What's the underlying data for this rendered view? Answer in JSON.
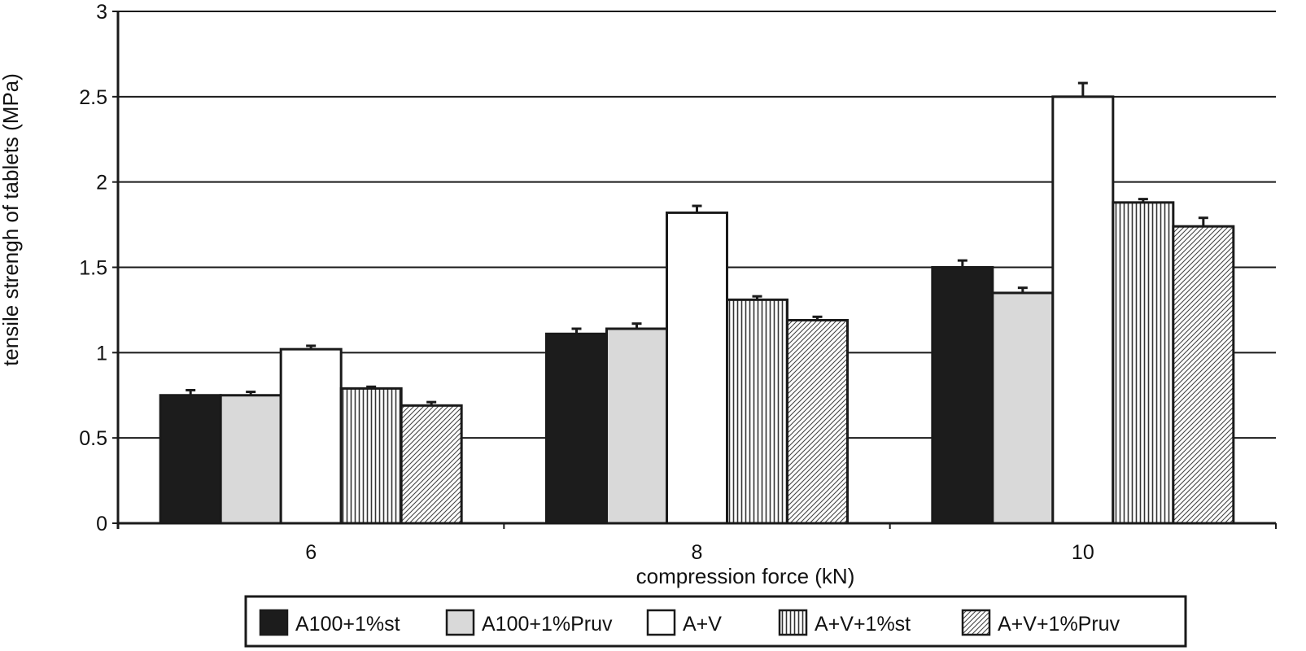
{
  "chart_data": {
    "type": "bar",
    "title": "",
    "xlabel": "compression force (kN)",
    "ylabel": "tensile strengh of tablets (MPa)",
    "categories": [
      "6",
      "8",
      "10"
    ],
    "ylim": [
      0,
      3
    ],
    "yticks": [
      "0",
      "0.5",
      "1",
      "1.5",
      "2",
      "2.5",
      "3"
    ],
    "grid": "horizontal",
    "legend_position": "bottom",
    "series": [
      {
        "name": "A100+1%st",
        "fill": "solid-black",
        "values": [
          0.75,
          1.11,
          1.5
        ],
        "errors": [
          0.03,
          0.03,
          0.04
        ]
      },
      {
        "name": "A100+1%Pruv",
        "fill": "solid-lightgray",
        "values": [
          0.75,
          1.14,
          1.35
        ],
        "errors": [
          0.02,
          0.03,
          0.03
        ]
      },
      {
        "name": "A+V",
        "fill": "white",
        "values": [
          1.02,
          1.82,
          2.5
        ],
        "errors": [
          0.02,
          0.04,
          0.08
        ]
      },
      {
        "name": "A+V+1%st",
        "fill": "vertical-stripes",
        "values": [
          0.79,
          1.31,
          1.88
        ],
        "errors": [
          0.01,
          0.02,
          0.02
        ]
      },
      {
        "name": "A+V+1%Pruv",
        "fill": "diagonal-hatch",
        "values": [
          0.69,
          1.19,
          1.74
        ],
        "errors": [
          0.02,
          0.02,
          0.05
        ]
      }
    ]
  },
  "colors": {
    "axis": "#1a1a1a",
    "solid_black": "#1c1c1c",
    "light_gray": "#d9d9d9",
    "white": "#ffffff",
    "pattern_line": "#333333"
  }
}
